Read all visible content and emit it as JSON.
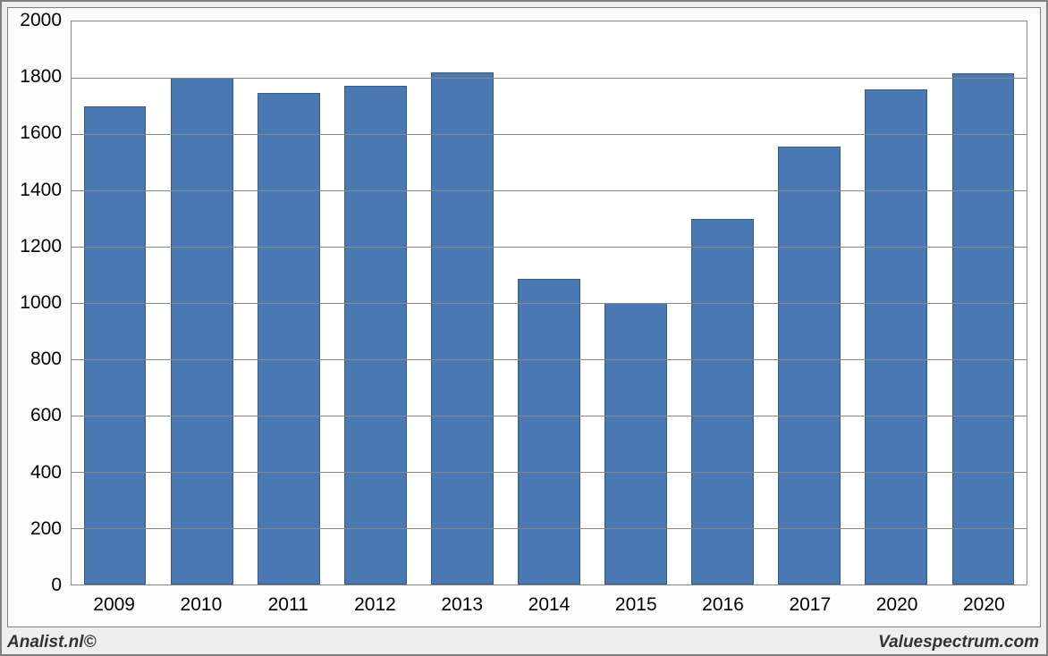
{
  "chart": {
    "type": "bar",
    "categories": [
      "2009",
      "2010",
      "2011",
      "2012",
      "2013",
      "2014",
      "2015",
      "2016",
      "2017",
      "2020",
      "2020"
    ],
    "values": [
      1700,
      1800,
      1745,
      1770,
      1820,
      1085,
      1000,
      1300,
      1555,
      1760,
      1815
    ],
    "ylim": [
      0,
      2000
    ],
    "ytick_step": 200,
    "y_tick_labels": [
      "0",
      "200",
      "400",
      "600",
      "800",
      "1000",
      "1200",
      "1400",
      "1600",
      "1800",
      "2000"
    ],
    "bar_color": "#4a78b2",
    "bar_border_color": "#3a5a85",
    "grid_color": "#888888",
    "background_color": "#ffffff",
    "outer_background_color": "#eeeeee",
    "bar_width_ratio": 0.72,
    "label_fontsize": 21,
    "label_color": "#000000"
  },
  "footer": {
    "left": "Analist.nl©",
    "right": "Valuespectrum.com"
  }
}
